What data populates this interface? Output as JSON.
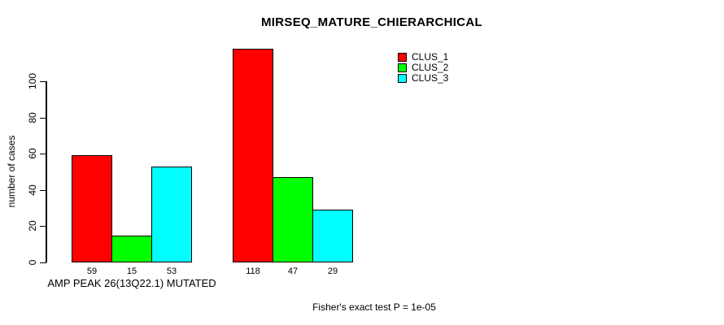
{
  "title": "MIRSEQ_MATURE_CHIERARCHICAL",
  "y_axis": {
    "label": "number of cases",
    "ticks": [
      0,
      20,
      40,
      60,
      80,
      100
    ]
  },
  "x_axis": {
    "group_label": "AMP PEAK 26(13Q22.1) MUTATED"
  },
  "footer": "Fisher's exact test P = 1e-05",
  "legend": {
    "items": [
      {
        "label": "CLUS_1",
        "color": "#ff0000"
      },
      {
        "label": "CLUS_2",
        "color": "#00ff00"
      },
      {
        "label": "CLUS_3",
        "color": "#00ffff"
      }
    ]
  },
  "colors": {
    "clus_1": "#ff0000",
    "clus_2": "#00ff00",
    "clus_3": "#00ffff",
    "axis": "#000000",
    "background": "#ffffff"
  },
  "chart_data": {
    "type": "bar",
    "title": "MIRSEQ_MATURE_CHIERARCHICAL",
    "xlabel": "AMP PEAK 26(13Q22.1) MUTATED",
    "ylabel": "number of cases",
    "ylim": [
      0,
      100
    ],
    "yticks": [
      0,
      20,
      40,
      60,
      80,
      100
    ],
    "grid": false,
    "legend_position": "top-right",
    "categories": [
      "AMP PEAK 26(13Q22.1) MUTATED",
      ""
    ],
    "series": [
      {
        "name": "CLUS_1",
        "color": "#ff0000",
        "values": [
          59,
          118
        ]
      },
      {
        "name": "CLUS_2",
        "color": "#00ff00",
        "values": [
          15,
          47
        ]
      },
      {
        "name": "CLUS_3",
        "color": "#00ffff",
        "values": [
          53,
          29
        ]
      }
    ],
    "bar_value_labels": [
      59,
      15,
      53,
      118,
      47,
      29
    ],
    "annotation": "Fisher's exact test P = 1e-05"
  }
}
